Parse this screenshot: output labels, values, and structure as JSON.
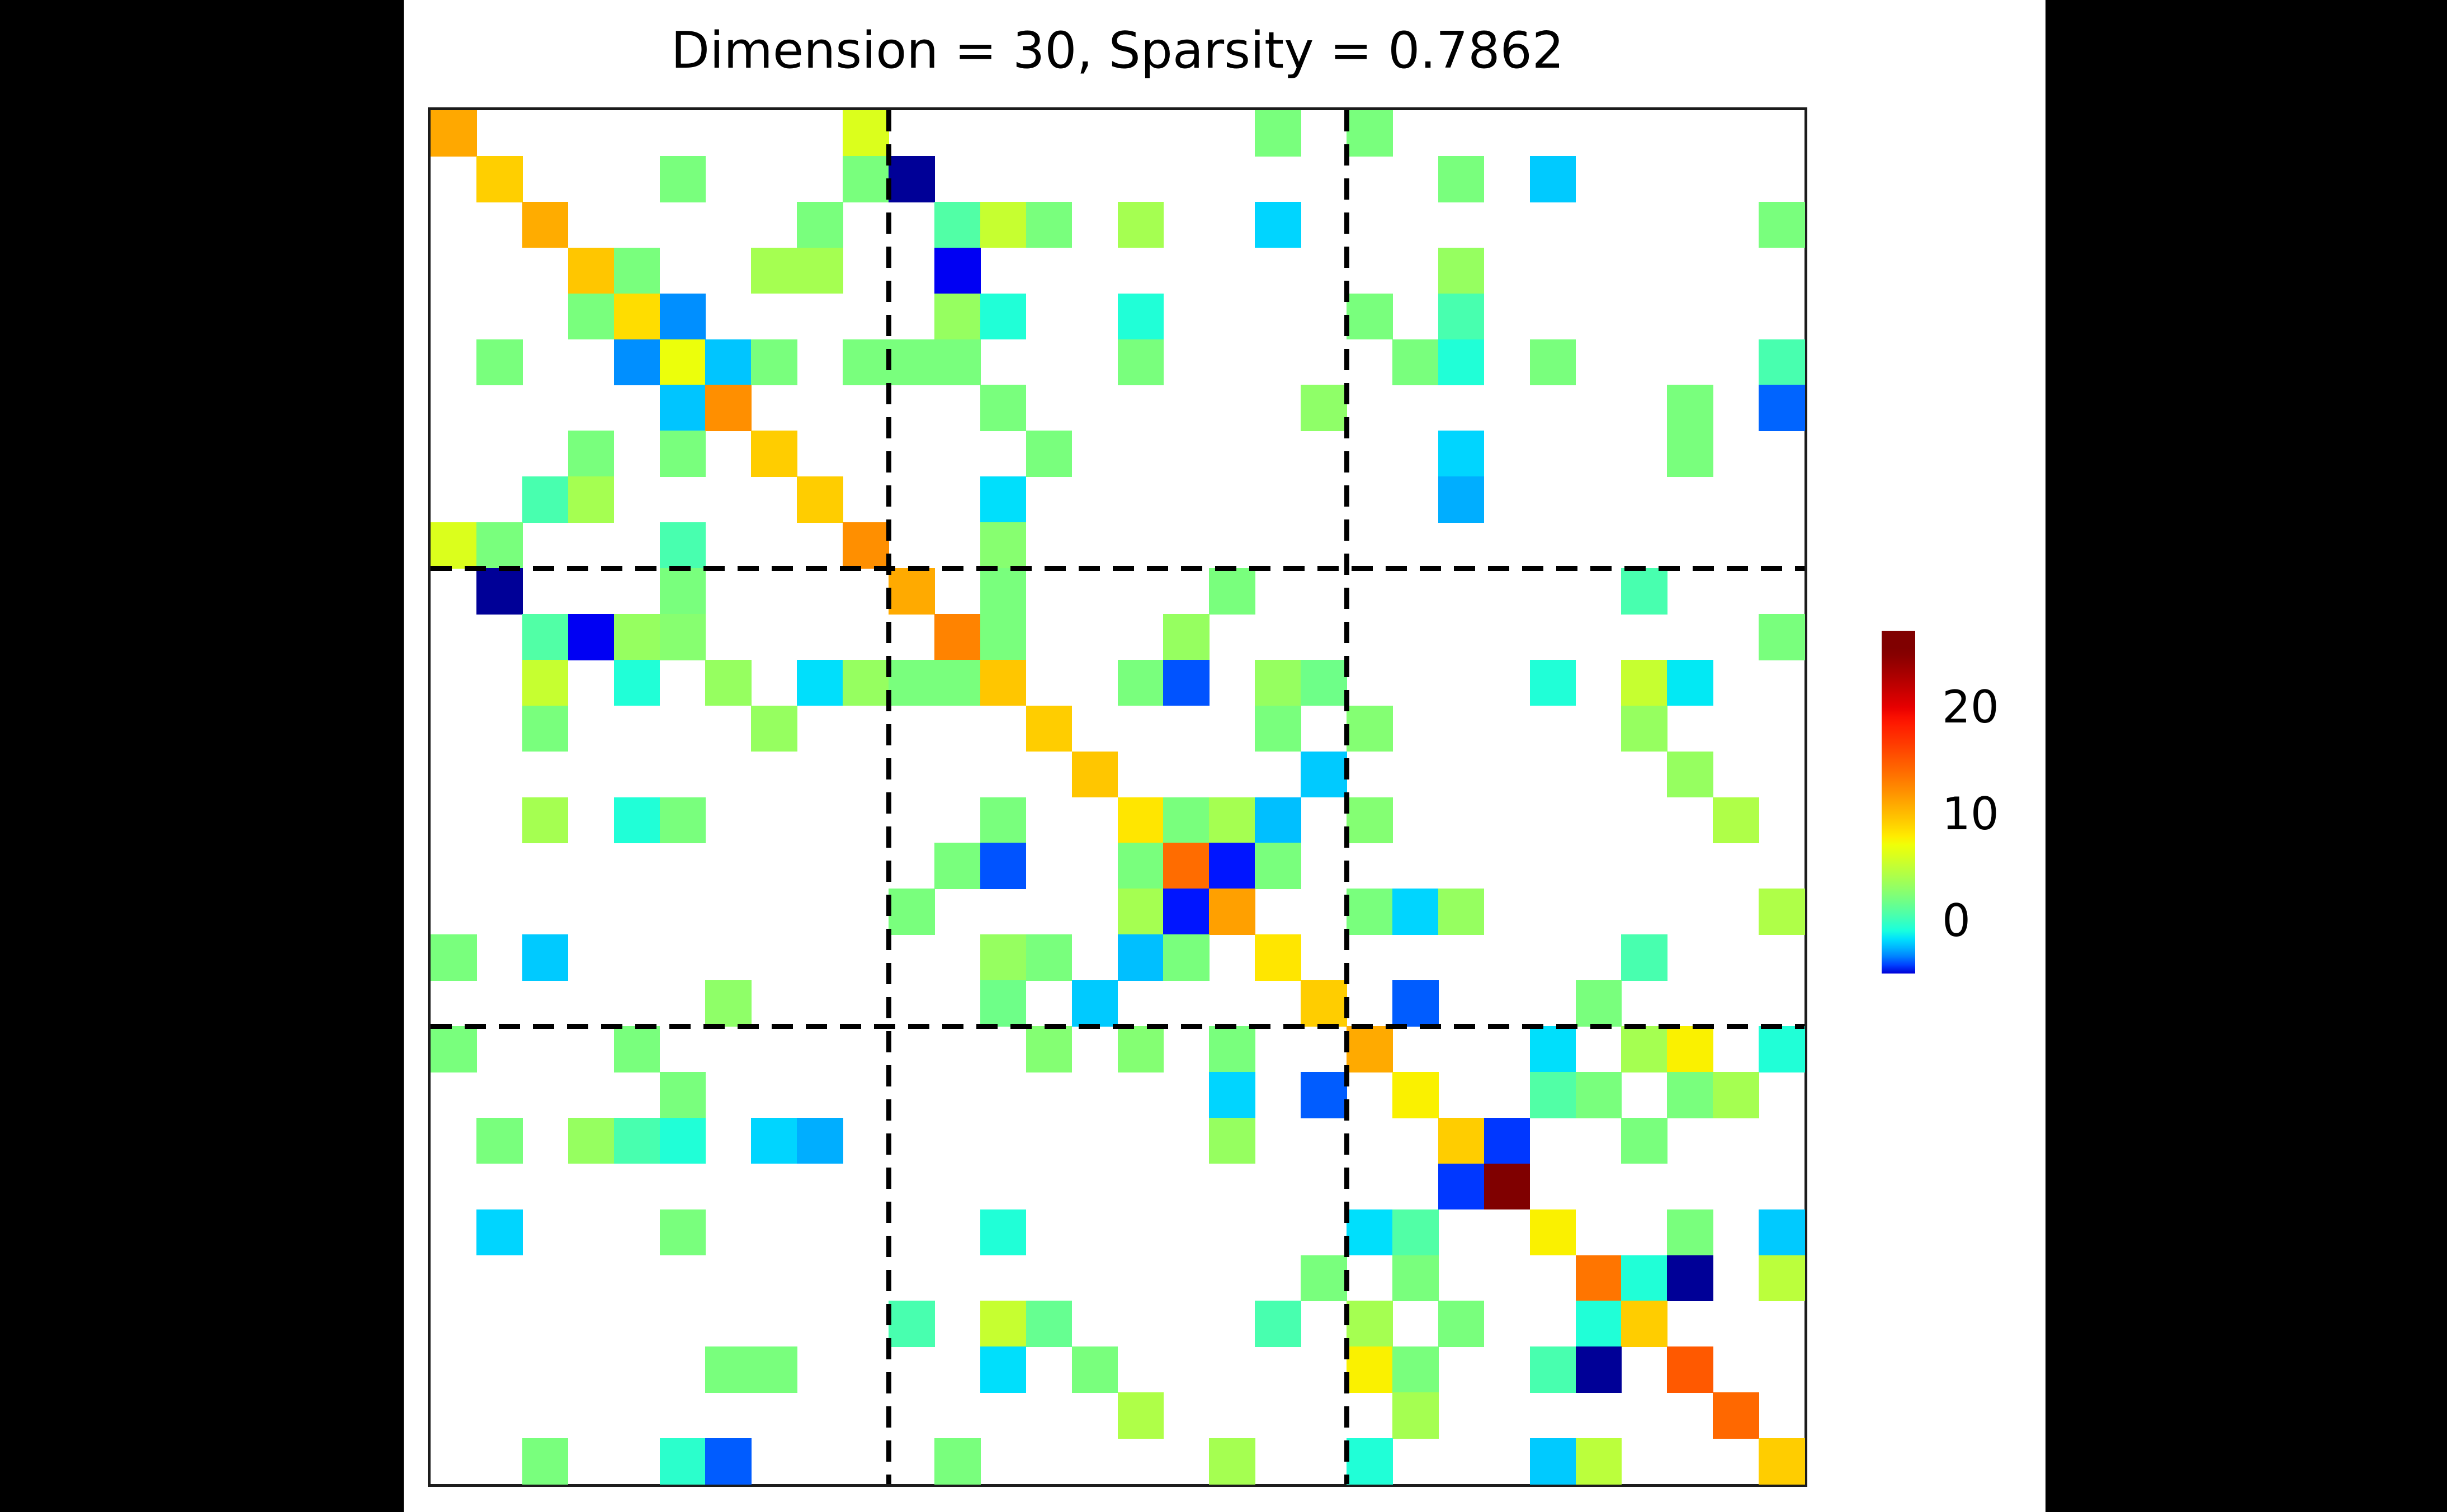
{
  "title": "Dimension = 30, Sparsity = 0.7862",
  "colors": {
    "background": "#000000",
    "panel": "#ffffff",
    "spine": "#1c1c1c",
    "divider": "#000000",
    "empty_cell": "#ffffff"
  },
  "chart_data": {
    "type": "heatmap",
    "title": "Dimension = 30, Sparsity = 0.7862",
    "dimension": 30,
    "sparsity": 0.7862,
    "colormap": "jet",
    "legend_position": "right",
    "grid": false,
    "block_dividers": [
      10,
      20
    ],
    "colorbar": {
      "vmin": -4.9,
      "vmax": 27.2,
      "ticks": [
        20,
        10,
        0
      ]
    },
    "cells": [
      [
        0,
        0,
        11
      ],
      [
        0,
        9,
        6.2
      ],
      [
        0,
        18,
        2.2
      ],
      [
        0,
        20,
        2.2
      ],
      [
        1,
        1,
        9.2
      ],
      [
        1,
        5,
        2.2
      ],
      [
        1,
        9,
        2.2
      ],
      [
        1,
        10,
        -5
      ],
      [
        1,
        22,
        2.2
      ],
      [
        1,
        24,
        -2.1
      ],
      [
        2,
        2,
        10.8
      ],
      [
        2,
        8,
        2.2
      ],
      [
        2,
        11,
        0.8
      ],
      [
        2,
        12,
        5.3
      ],
      [
        2,
        13,
        2.2
      ],
      [
        2,
        15,
        3.9
      ],
      [
        2,
        18,
        -1.9
      ],
      [
        2,
        29,
        2.2
      ],
      [
        3,
        3,
        9.6
      ],
      [
        3,
        4,
        2.2
      ],
      [
        3,
        7,
        3.9
      ],
      [
        3,
        8,
        3.9
      ],
      [
        3,
        11,
        -4.8
      ],
      [
        3,
        22,
        3.3
      ],
      [
        4,
        3,
        2.2
      ],
      [
        4,
        4,
        8.6
      ],
      [
        4,
        5,
        -3.1
      ],
      [
        4,
        11,
        3.3
      ],
      [
        4,
        12,
        -0.7
      ],
      [
        4,
        15,
        -0.7
      ],
      [
        4,
        20,
        2.2
      ],
      [
        4,
        22,
        0.5
      ],
      [
        5,
        1,
        2.2
      ],
      [
        5,
        4,
        -3.1
      ],
      [
        5,
        5,
        7
      ],
      [
        5,
        6,
        -2.2
      ],
      [
        5,
        7,
        2.2
      ],
      [
        5,
        9,
        2.2
      ],
      [
        5,
        10,
        2.2
      ],
      [
        5,
        11,
        2.2
      ],
      [
        5,
        15,
        2.2
      ],
      [
        5,
        21,
        2.2
      ],
      [
        5,
        22,
        -0.7
      ],
      [
        5,
        24,
        2.2
      ],
      [
        5,
        29,
        0.5
      ],
      [
        6,
        5,
        -2.2
      ],
      [
        6,
        6,
        12.2
      ],
      [
        6,
        12,
        2.2
      ],
      [
        6,
        19,
        3
      ],
      [
        6,
        27,
        2.2
      ],
      [
        6,
        29,
        -3.7
      ],
      [
        7,
        3,
        2.2
      ],
      [
        7,
        5,
        2.2
      ],
      [
        7,
        7,
        9.3
      ],
      [
        7,
        13,
        2.2
      ],
      [
        7,
        22,
        -1.9
      ],
      [
        7,
        27,
        2.2
      ],
      [
        8,
        2,
        0.5
      ],
      [
        8,
        3,
        3.9
      ],
      [
        8,
        8,
        9.3
      ],
      [
        8,
        12,
        -1.7
      ],
      [
        8,
        22,
        -2.6
      ],
      [
        9,
        0,
        6.2
      ],
      [
        9,
        1,
        2.2
      ],
      [
        9,
        5,
        0.5
      ],
      [
        9,
        9,
        12.2
      ],
      [
        9,
        12,
        2.7
      ],
      [
        10,
        1,
        -5
      ],
      [
        10,
        5,
        2.2
      ],
      [
        10,
        10,
        10.9
      ],
      [
        10,
        12,
        2.2
      ],
      [
        10,
        17,
        2.2
      ],
      [
        10,
        26,
        0.5
      ],
      [
        11,
        2,
        0.8
      ],
      [
        11,
        3,
        -4.8
      ],
      [
        11,
        4,
        3.3
      ],
      [
        11,
        5,
        2.7
      ],
      [
        11,
        11,
        12.8
      ],
      [
        11,
        12,
        2.2
      ],
      [
        11,
        16,
        3.3
      ],
      [
        11,
        29,
        2.2
      ],
      [
        12,
        2,
        5.3
      ],
      [
        12,
        4,
        -0.7
      ],
      [
        12,
        6,
        3.3
      ],
      [
        12,
        8,
        -1.7
      ],
      [
        12,
        9,
        3.3
      ],
      [
        12,
        10,
        2.2
      ],
      [
        12,
        11,
        2.2
      ],
      [
        12,
        12,
        9.6
      ],
      [
        12,
        15,
        2.2
      ],
      [
        12,
        16,
        -3.9
      ],
      [
        12,
        18,
        3.3
      ],
      [
        12,
        19,
        1.8
      ],
      [
        12,
        24,
        -0.7
      ],
      [
        12,
        26,
        5.3
      ],
      [
        12,
        27,
        -1.5
      ],
      [
        13,
        2,
        2.2
      ],
      [
        13,
        7,
        3.3
      ],
      [
        13,
        13,
        9.3
      ],
      [
        13,
        18,
        2.2
      ],
      [
        13,
        20,
        2.6
      ],
      [
        13,
        26,
        3.3
      ],
      [
        14,
        14,
        9.6
      ],
      [
        14,
        19,
        -2.1
      ],
      [
        14,
        27,
        3.3
      ],
      [
        15,
        2,
        3.9
      ],
      [
        15,
        4,
        -0.7
      ],
      [
        15,
        5,
        2.2
      ],
      [
        15,
        12,
        2.2
      ],
      [
        15,
        15,
        8.2
      ],
      [
        15,
        16,
        2.2
      ],
      [
        15,
        17,
        3.9
      ],
      [
        15,
        18,
        -2.3
      ],
      [
        15,
        20,
        2.6
      ],
      [
        15,
        28,
        4.3
      ],
      [
        16,
        11,
        2.2
      ],
      [
        16,
        12,
        -3.9
      ],
      [
        16,
        15,
        2.2
      ],
      [
        16,
        16,
        14
      ],
      [
        16,
        17,
        -4.5
      ],
      [
        16,
        18,
        2.2
      ],
      [
        17,
        10,
        2.2
      ],
      [
        17,
        15,
        3.9
      ],
      [
        17,
        16,
        -4.5
      ],
      [
        17,
        17,
        11.4
      ],
      [
        17,
        20,
        2.2
      ],
      [
        17,
        21,
        -1.9
      ],
      [
        17,
        22,
        3.3
      ],
      [
        17,
        29,
        4.3
      ],
      [
        18,
        0,
        2.2
      ],
      [
        18,
        2,
        -2.1
      ],
      [
        18,
        12,
        3.3
      ],
      [
        18,
        13,
        2.2
      ],
      [
        18,
        15,
        -2.3
      ],
      [
        18,
        16,
        2.2
      ],
      [
        18,
        18,
        8.2
      ],
      [
        18,
        26,
        0.5
      ],
      [
        19,
        6,
        3
      ],
      [
        19,
        12,
        1.8
      ],
      [
        19,
        14,
        -2.1
      ],
      [
        19,
        19,
        9.3
      ],
      [
        19,
        21,
        -3.8
      ],
      [
        19,
        25,
        2.2
      ],
      [
        20,
        0,
        2.2
      ],
      [
        20,
        4,
        2.2
      ],
      [
        20,
        13,
        2.6
      ],
      [
        20,
        15,
        2.6
      ],
      [
        20,
        17,
        2.2
      ],
      [
        20,
        20,
        10.9
      ],
      [
        20,
        24,
        -1.7
      ],
      [
        20,
        26,
        3.9
      ],
      [
        20,
        27,
        7.7
      ],
      [
        20,
        29,
        -0.7
      ],
      [
        21,
        5,
        2.2
      ],
      [
        21,
        17,
        -1.9
      ],
      [
        21,
        19,
        -3.8
      ],
      [
        21,
        21,
        7.7
      ],
      [
        21,
        24,
        0.8
      ],
      [
        21,
        25,
        2.2
      ],
      [
        21,
        27,
        2.2
      ],
      [
        21,
        28,
        3.9
      ],
      [
        22,
        1,
        2.2
      ],
      [
        22,
        3,
        3.3
      ],
      [
        22,
        4,
        0.5
      ],
      [
        22,
        5,
        -0.7
      ],
      [
        22,
        7,
        -1.9
      ],
      [
        22,
        8,
        -2.6
      ],
      [
        22,
        17,
        3.3
      ],
      [
        22,
        22,
        9.3
      ],
      [
        22,
        23,
        -4.2
      ],
      [
        22,
        26,
        2.2
      ],
      [
        23,
        22,
        -4.2
      ],
      [
        23,
        23,
        26.5
      ],
      [
        24,
        1,
        -1.9
      ],
      [
        24,
        5,
        2.2
      ],
      [
        24,
        12,
        -0.7
      ],
      [
        24,
        20,
        -1.7
      ],
      [
        24,
        21,
        0.8
      ],
      [
        24,
        24,
        7.7
      ],
      [
        24,
        27,
        2.2
      ],
      [
        24,
        29,
        -2.1
      ],
      [
        25,
        19,
        2.2
      ],
      [
        25,
        21,
        2.2
      ],
      [
        25,
        25,
        13.5
      ],
      [
        25,
        26,
        -0.7
      ],
      [
        25,
        27,
        -5
      ],
      [
        25,
        29,
        4.8
      ],
      [
        26,
        10,
        0.5
      ],
      [
        26,
        12,
        5.3
      ],
      [
        26,
        13,
        1.5
      ],
      [
        26,
        18,
        0.5
      ],
      [
        26,
        20,
        3.9
      ],
      [
        26,
        22,
        2.2
      ],
      [
        26,
        25,
        -0.7
      ],
      [
        26,
        26,
        9.3
      ],
      [
        27,
        6,
        2.2
      ],
      [
        27,
        7,
        2.2
      ],
      [
        27,
        12,
        -1.7
      ],
      [
        27,
        14,
        2.2
      ],
      [
        27,
        20,
        7.7
      ],
      [
        27,
        21,
        2.2
      ],
      [
        27,
        24,
        0.5
      ],
      [
        27,
        25,
        -5
      ],
      [
        27,
        27,
        15
      ],
      [
        28,
        15,
        4.3
      ],
      [
        28,
        21,
        3.9
      ],
      [
        28,
        28,
        14.2
      ],
      [
        29,
        2,
        2.2
      ],
      [
        29,
        5,
        -0.4
      ],
      [
        29,
        6,
        -3.8
      ],
      [
        29,
        11,
        2.2
      ],
      [
        29,
        17,
        3.9
      ],
      [
        29,
        20,
        -0.7
      ],
      [
        29,
        24,
        -2.1
      ],
      [
        29,
        25,
        4.8
      ],
      [
        29,
        29,
        9.3
      ]
    ]
  }
}
